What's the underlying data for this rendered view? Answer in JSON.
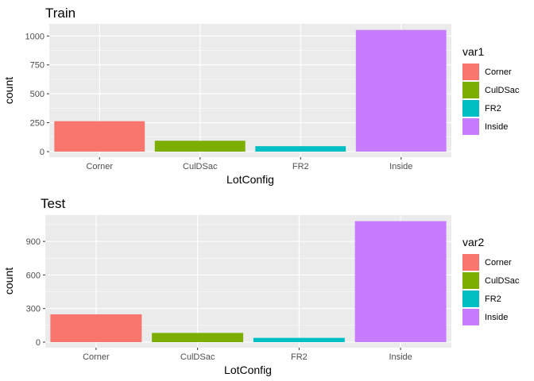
{
  "chart_data": [
    {
      "type": "bar",
      "title": "Train",
      "xlabel": "LotConfig",
      "ylabel": "count",
      "categories": [
        "Corner",
        "CulDSac",
        "FR2",
        "Inside"
      ],
      "values": [
        263,
        94,
        47,
        1052
      ],
      "yticks": [
        0,
        250,
        500,
        750,
        1000
      ],
      "ylim": [
        0,
        1105
      ],
      "legend_title": "var1",
      "legend_position": "right",
      "grid": true
    },
    {
      "type": "bar",
      "title": "Test",
      "xlabel": "LotConfig",
      "ylabel": "count",
      "categories": [
        "Corner",
        "CulDSac",
        "FR2",
        "Inside"
      ],
      "values": [
        248,
        82,
        38,
        1081
      ],
      "yticks": [
        0,
        300,
        600,
        900
      ],
      "ylim": [
        0,
        1135
      ],
      "legend_title": "var2",
      "legend_position": "right",
      "grid": true
    }
  ],
  "colors": {
    "Corner": "#F8766D",
    "CulDSac": "#7CAE00",
    "FR2": "#00BFC4",
    "Inside": "#C77CFF",
    "panel_bg": "#EBEBEB",
    "grid": "#FFFFFF"
  }
}
